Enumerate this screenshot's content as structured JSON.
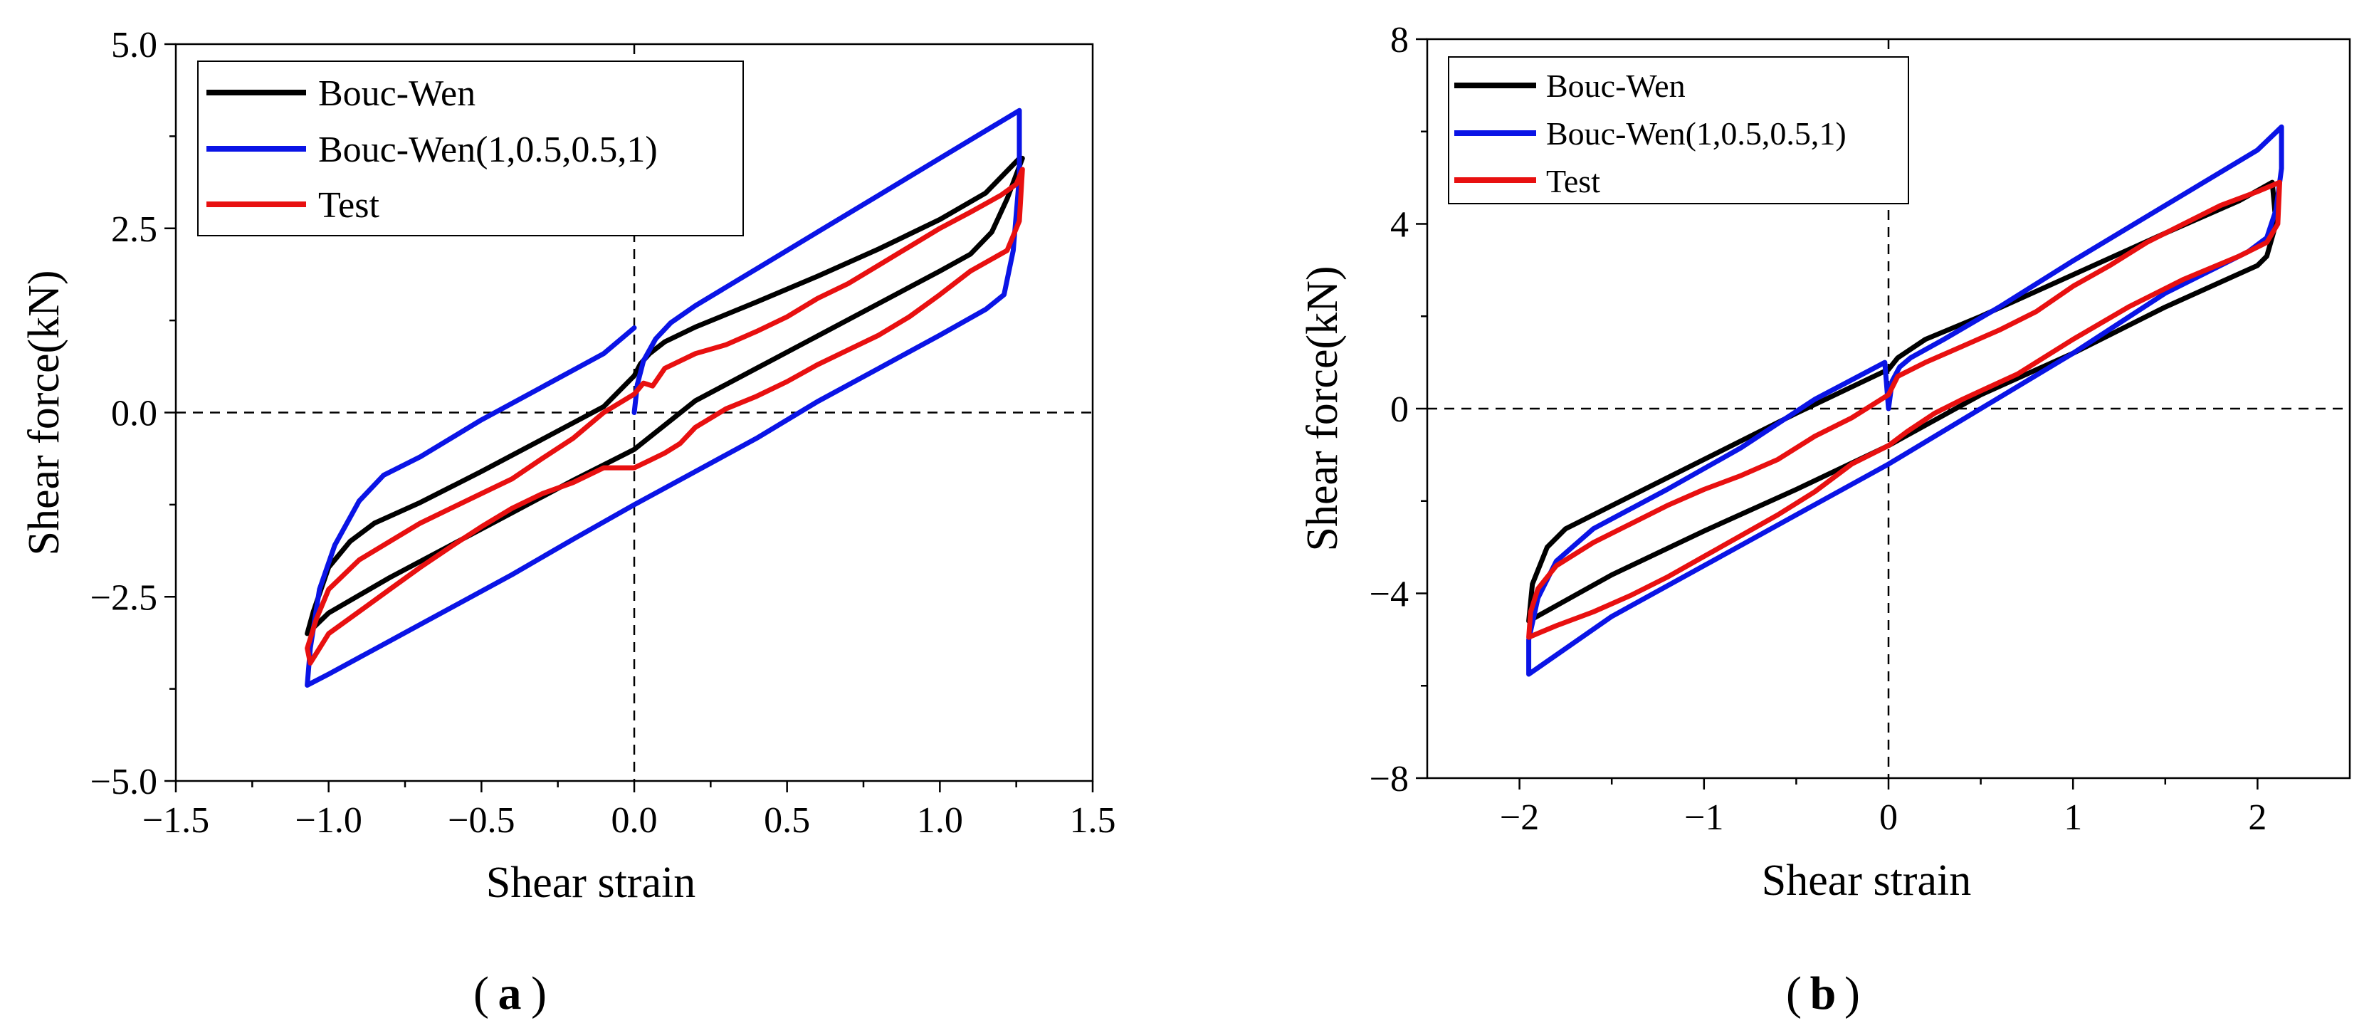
{
  "chart_data": [
    {
      "panel": "a",
      "caption_label": "a",
      "type": "line",
      "xlabel": "Shear strain",
      "ylabel": "Shear force(kN)",
      "xlim": [
        -1.5,
        1.5
      ],
      "ylim": [
        -5.0,
        5.0
      ],
      "xticks": [
        -1.5,
        -1.0,
        -0.5,
        0.0,
        0.5,
        1.0,
        1.5
      ],
      "xtick_labels": [
        "−1.5",
        "−1.0",
        "−0.5",
        "0.0",
        "0.5",
        "1.0",
        "1.5"
      ],
      "yticks": [
        -5.0,
        -2.5,
        0.0,
        2.5,
        5.0
      ],
      "ytick_labels": [
        "−5.0",
        "−2.5",
        "0.0",
        "2.5",
        "5.0"
      ],
      "reference_lines": {
        "x": 0,
        "y": 0,
        "style": "dashed"
      },
      "legend_position": "top-left",
      "series": [
        {
          "name": "Bouc-Wen",
          "color": "#000000",
          "points": [
            [
              0.0,
              0.5
            ],
            [
              0.02,
              0.66
            ],
            [
              0.05,
              0.8
            ],
            [
              0.1,
              0.96
            ],
            [
              0.2,
              1.16
            ],
            [
              0.4,
              1.5
            ],
            [
              0.6,
              1.85
            ],
            [
              0.8,
              2.22
            ],
            [
              1.0,
              2.62
            ],
            [
              1.15,
              2.98
            ],
            [
              1.26,
              3.45
            ],
            [
              1.27,
              3.45
            ],
            [
              1.22,
              2.9
            ],
            [
              1.17,
              2.45
            ],
            [
              1.1,
              2.15
            ],
            [
              1.0,
              1.92
            ],
            [
              0.8,
              1.48
            ],
            [
              0.6,
              1.04
            ],
            [
              0.4,
              0.6
            ],
            [
              0.2,
              0.16
            ],
            [
              0.0,
              -0.5
            ],
            [
              -0.2,
              -0.92
            ],
            [
              -0.4,
              -1.36
            ],
            [
              -0.6,
              -1.8
            ],
            [
              -0.8,
              -2.24
            ],
            [
              -1.0,
              -2.72
            ],
            [
              -1.07,
              -3.0
            ],
            [
              -1.05,
              -2.7
            ],
            [
              -1.0,
              -2.1
            ],
            [
              -0.93,
              -1.75
            ],
            [
              -0.85,
              -1.5
            ],
            [
              -0.7,
              -1.22
            ],
            [
              -0.5,
              -0.8
            ],
            [
              -0.3,
              -0.36
            ],
            [
              -0.1,
              0.08
            ],
            [
              0.0,
              0.5
            ]
          ]
        },
        {
          "name": "Bouc-Wen(1,0.5,0.5,1)",
          "color": "#0a14e6",
          "points": [
            [
              0.0,
              0.0
            ],
            [
              0.01,
              0.38
            ],
            [
              0.03,
              0.7
            ],
            [
              0.07,
              1.0
            ],
            [
              0.12,
              1.22
            ],
            [
              0.2,
              1.45
            ],
            [
              0.4,
              1.95
            ],
            [
              0.6,
              2.45
            ],
            [
              0.8,
              2.95
            ],
            [
              1.0,
              3.45
            ],
            [
              1.2,
              3.95
            ],
            [
              1.26,
              4.1
            ],
            [
              1.26,
              3.2
            ],
            [
              1.24,
              2.2
            ],
            [
              1.21,
              1.6
            ],
            [
              1.15,
              1.4
            ],
            [
              1.0,
              1.05
            ],
            [
              0.8,
              0.6
            ],
            [
              0.6,
              0.15
            ],
            [
              0.4,
              -0.35
            ],
            [
              0.2,
              -0.8
            ],
            [
              0.0,
              -1.25
            ],
            [
              -0.2,
              -1.72
            ],
            [
              -0.4,
              -2.2
            ],
            [
              -0.6,
              -2.65
            ],
            [
              -0.8,
              -3.1
            ],
            [
              -1.0,
              -3.55
            ],
            [
              -1.07,
              -3.7
            ],
            [
              -1.06,
              -3.2
            ],
            [
              -1.03,
              -2.4
            ],
            [
              -0.98,
              -1.8
            ],
            [
              -0.9,
              -1.2
            ],
            [
              -0.82,
              -0.85
            ],
            [
              -0.7,
              -0.6
            ],
            [
              -0.5,
              -0.1
            ],
            [
              -0.3,
              0.35
            ],
            [
              -0.1,
              0.8
            ],
            [
              0.0,
              1.15
            ]
          ]
        },
        {
          "name": "Test",
          "color": "#e81010",
          "points": [
            [
              0.0,
              0.25
            ],
            [
              0.03,
              0.4
            ],
            [
              0.06,
              0.36
            ],
            [
              0.1,
              0.6
            ],
            [
              0.2,
              0.8
            ],
            [
              0.3,
              0.92
            ],
            [
              0.4,
              1.1
            ],
            [
              0.5,
              1.3
            ],
            [
              0.6,
              1.55
            ],
            [
              0.7,
              1.75
            ],
            [
              0.8,
              2.0
            ],
            [
              0.9,
              2.25
            ],
            [
              1.0,
              2.5
            ],
            [
              1.1,
              2.72
            ],
            [
              1.2,
              2.95
            ],
            [
              1.25,
              3.1
            ],
            [
              1.27,
              3.3
            ],
            [
              1.26,
              2.6
            ],
            [
              1.22,
              2.2
            ],
            [
              1.1,
              1.92
            ],
            [
              1.0,
              1.6
            ],
            [
              0.9,
              1.3
            ],
            [
              0.8,
              1.05
            ],
            [
              0.7,
              0.85
            ],
            [
              0.6,
              0.65
            ],
            [
              0.5,
              0.42
            ],
            [
              0.4,
              0.22
            ],
            [
              0.3,
              0.05
            ],
            [
              0.2,
              -0.2
            ],
            [
              0.15,
              -0.42
            ],
            [
              0.1,
              -0.55
            ],
            [
              0.05,
              -0.65
            ],
            [
              0.0,
              -0.75
            ],
            [
              -0.1,
              -0.75
            ],
            [
              -0.2,
              -0.95
            ],
            [
              -0.3,
              -1.1
            ],
            [
              -0.4,
              -1.3
            ],
            [
              -0.5,
              -1.55
            ],
            [
              -0.6,
              -1.82
            ],
            [
              -0.7,
              -2.1
            ],
            [
              -0.8,
              -2.4
            ],
            [
              -0.9,
              -2.7
            ],
            [
              -1.0,
              -3.0
            ],
            [
              -1.06,
              -3.4
            ],
            [
              -1.07,
              -3.2
            ],
            [
              -1.04,
              -2.8
            ],
            [
              -1.0,
              -2.4
            ],
            [
              -0.9,
              -2.0
            ],
            [
              -0.8,
              -1.75
            ],
            [
              -0.7,
              -1.5
            ],
            [
              -0.6,
              -1.3
            ],
            [
              -0.5,
              -1.1
            ],
            [
              -0.4,
              -0.9
            ],
            [
              -0.3,
              -0.62
            ],
            [
              -0.2,
              -0.35
            ],
            [
              -0.1,
              0.0
            ],
            [
              0.0,
              0.25
            ]
          ]
        }
      ]
    },
    {
      "panel": "b",
      "caption_label": "b",
      "type": "line",
      "xlabel": "Shear strain",
      "ylabel": "Shear force(kN)",
      "xlim": [
        -2.5,
        2.5
      ],
      "ylim": [
        -8,
        8
      ],
      "xticks": [
        -2,
        -1,
        0,
        1,
        2
      ],
      "xtick_labels": [
        "−2",
        "−1",
        "0",
        "1",
        "2"
      ],
      "yticks": [
        -8,
        -4,
        0,
        4,
        8
      ],
      "ytick_labels": [
        "−8",
        "−4",
        "0",
        "4",
        "8"
      ],
      "reference_lines": {
        "x": 0,
        "y": 0,
        "style": "dashed"
      },
      "legend_position": "top-left",
      "series": [
        {
          "name": "Bouc-Wen",
          "color": "#000000",
          "points": [
            [
              0.0,
              0.85
            ],
            [
              0.05,
              1.1
            ],
            [
              0.2,
              1.5
            ],
            [
              0.5,
              2.0
            ],
            [
              1.0,
              2.9
            ],
            [
              1.5,
              3.8
            ],
            [
              1.9,
              4.5
            ],
            [
              2.08,
              4.9
            ],
            [
              2.1,
              4.0
            ],
            [
              2.05,
              3.3
            ],
            [
              2.0,
              3.1
            ],
            [
              1.5,
              2.2
            ],
            [
              1.0,
              1.2
            ],
            [
              0.5,
              0.3
            ],
            [
              0.0,
              -0.8
            ],
            [
              -0.5,
              -1.75
            ],
            [
              -1.0,
              -2.65
            ],
            [
              -1.5,
              -3.6
            ],
            [
              -1.95,
              -4.6
            ],
            [
              -1.93,
              -3.8
            ],
            [
              -1.85,
              -3.0
            ],
            [
              -1.75,
              -2.6
            ],
            [
              -1.5,
              -2.1
            ],
            [
              -1.0,
              -1.1
            ],
            [
              -0.5,
              -0.1
            ],
            [
              0.0,
              0.85
            ]
          ]
        },
        {
          "name": "Bouc-Wen(1,0.5,0.5,1)",
          "color": "#0a14e6",
          "points": [
            [
              0.0,
              0.0
            ],
            [
              0.02,
              0.6
            ],
            [
              0.06,
              0.9
            ],
            [
              0.12,
              1.1
            ],
            [
              0.3,
              1.5
            ],
            [
              0.6,
              2.2
            ],
            [
              1.0,
              3.2
            ],
            [
              1.5,
              4.4
            ],
            [
              2.0,
              5.6
            ],
            [
              2.13,
              6.1
            ],
            [
              2.13,
              5.2
            ],
            [
              2.1,
              4.3
            ],
            [
              2.05,
              3.7
            ],
            [
              1.95,
              3.4
            ],
            [
              1.5,
              2.5
            ],
            [
              1.0,
              1.2
            ],
            [
              0.5,
              0.0
            ],
            [
              0.0,
              -1.2
            ],
            [
              -0.5,
              -2.3
            ],
            [
              -1.0,
              -3.4
            ],
            [
              -1.5,
              -4.5
            ],
            [
              -1.95,
              -5.75
            ],
            [
              -1.95,
              -5.0
            ],
            [
              -1.9,
              -4.1
            ],
            [
              -1.8,
              -3.3
            ],
            [
              -1.6,
              -2.6
            ],
            [
              -1.2,
              -1.75
            ],
            [
              -0.8,
              -0.85
            ],
            [
              -0.4,
              0.2
            ],
            [
              -0.02,
              1.0
            ],
            [
              0.0,
              0.0
            ]
          ]
        },
        {
          "name": "Test",
          "color": "#e81010",
          "points": [
            [
              0.0,
              0.3
            ],
            [
              0.05,
              0.7
            ],
            [
              0.2,
              1.0
            ],
            [
              0.4,
              1.35
            ],
            [
              0.6,
              1.7
            ],
            [
              0.8,
              2.1
            ],
            [
              1.0,
              2.65
            ],
            [
              1.2,
              3.1
            ],
            [
              1.4,
              3.6
            ],
            [
              1.6,
              4.0
            ],
            [
              1.8,
              4.4
            ],
            [
              2.0,
              4.7
            ],
            [
              2.12,
              4.9
            ],
            [
              2.11,
              4.0
            ],
            [
              2.05,
              3.6
            ],
            [
              1.9,
              3.3
            ],
            [
              1.6,
              2.8
            ],
            [
              1.3,
              2.2
            ],
            [
              1.0,
              1.5
            ],
            [
              0.7,
              0.75
            ],
            [
              0.4,
              0.2
            ],
            [
              0.25,
              -0.1
            ],
            [
              0.1,
              -0.5
            ],
            [
              0.0,
              -0.8
            ],
            [
              -0.2,
              -1.2
            ],
            [
              -0.4,
              -1.8
            ],
            [
              -0.6,
              -2.3
            ],
            [
              -0.8,
              -2.75
            ],
            [
              -1.0,
              -3.2
            ],
            [
              -1.2,
              -3.65
            ],
            [
              -1.4,
              -4.05
            ],
            [
              -1.6,
              -4.4
            ],
            [
              -1.8,
              -4.7
            ],
            [
              -1.95,
              -4.95
            ],
            [
              -1.94,
              -4.4
            ],
            [
              -1.9,
              -3.9
            ],
            [
              -1.8,
              -3.4
            ],
            [
              -1.6,
              -2.9
            ],
            [
              -1.4,
              -2.5
            ],
            [
              -1.2,
              -2.1
            ],
            [
              -1.0,
              -1.75
            ],
            [
              -0.8,
              -1.45
            ],
            [
              -0.6,
              -1.1
            ],
            [
              -0.4,
              -0.6
            ],
            [
              -0.2,
              -0.2
            ],
            [
              0.0,
              0.3
            ]
          ]
        }
      ]
    }
  ]
}
